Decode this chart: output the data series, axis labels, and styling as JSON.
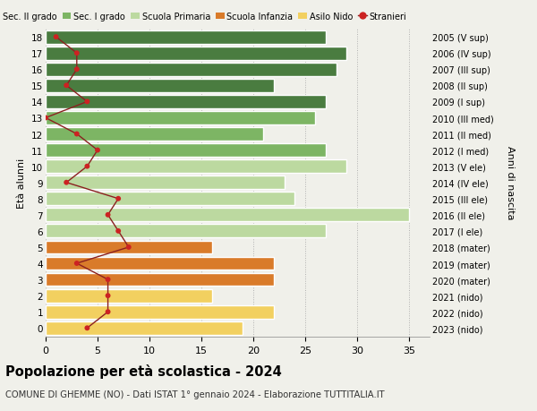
{
  "ages": [
    0,
    1,
    2,
    3,
    4,
    5,
    6,
    7,
    8,
    9,
    10,
    11,
    12,
    13,
    14,
    15,
    16,
    17,
    18
  ],
  "bar_values": [
    19,
    22,
    16,
    22,
    22,
    16,
    27,
    35,
    24,
    23,
    29,
    27,
    21,
    26,
    27,
    22,
    28,
    29,
    27
  ],
  "stranieri": [
    4,
    6,
    6,
    6,
    3,
    8,
    7,
    6,
    7,
    2,
    4,
    5,
    3,
    0,
    4,
    2,
    3,
    3,
    1
  ],
  "right_labels": [
    "2023 (nido)",
    "2022 (nido)",
    "2021 (nido)",
    "2020 (mater)",
    "2019 (mater)",
    "2018 (mater)",
    "2017 (I ele)",
    "2016 (II ele)",
    "2015 (III ele)",
    "2014 (IV ele)",
    "2013 (V ele)",
    "2012 (I med)",
    "2011 (II med)",
    "2010 (III med)",
    "2009 (I sup)",
    "2008 (II sup)",
    "2007 (III sup)",
    "2006 (IV sup)",
    "2005 (V sup)"
  ],
  "colors": {
    "sec_II": "#4a7c40",
    "sec_I": "#7db564",
    "primaria": "#bcd9a0",
    "infanzia": "#d97b2a",
    "nido": "#f2d060",
    "stranieri_line": "#8b2020",
    "stranieri_dot": "#cc2222"
  },
  "legend_labels": [
    "Sec. II grado",
    "Sec. I grado",
    "Scuola Primaria",
    "Scuola Infanzia",
    "Asilo Nido",
    "Stranieri"
  ],
  "title": "Popolazione per età scolastica - 2024",
  "subtitle": "COMUNE DI GHEMME (NO) - Dati ISTAT 1° gennaio 2024 - Elaborazione TUTTITALIA.IT",
  "ylabel": "Età alunni",
  "ylabel2": "Anni di nascita",
  "xlim": [
    0,
    37
  ],
  "xticks": [
    0,
    5,
    10,
    15,
    20,
    25,
    30,
    35
  ],
  "background_color": "#f0f0ea",
  "plot_bg": "#f0f0ea"
}
